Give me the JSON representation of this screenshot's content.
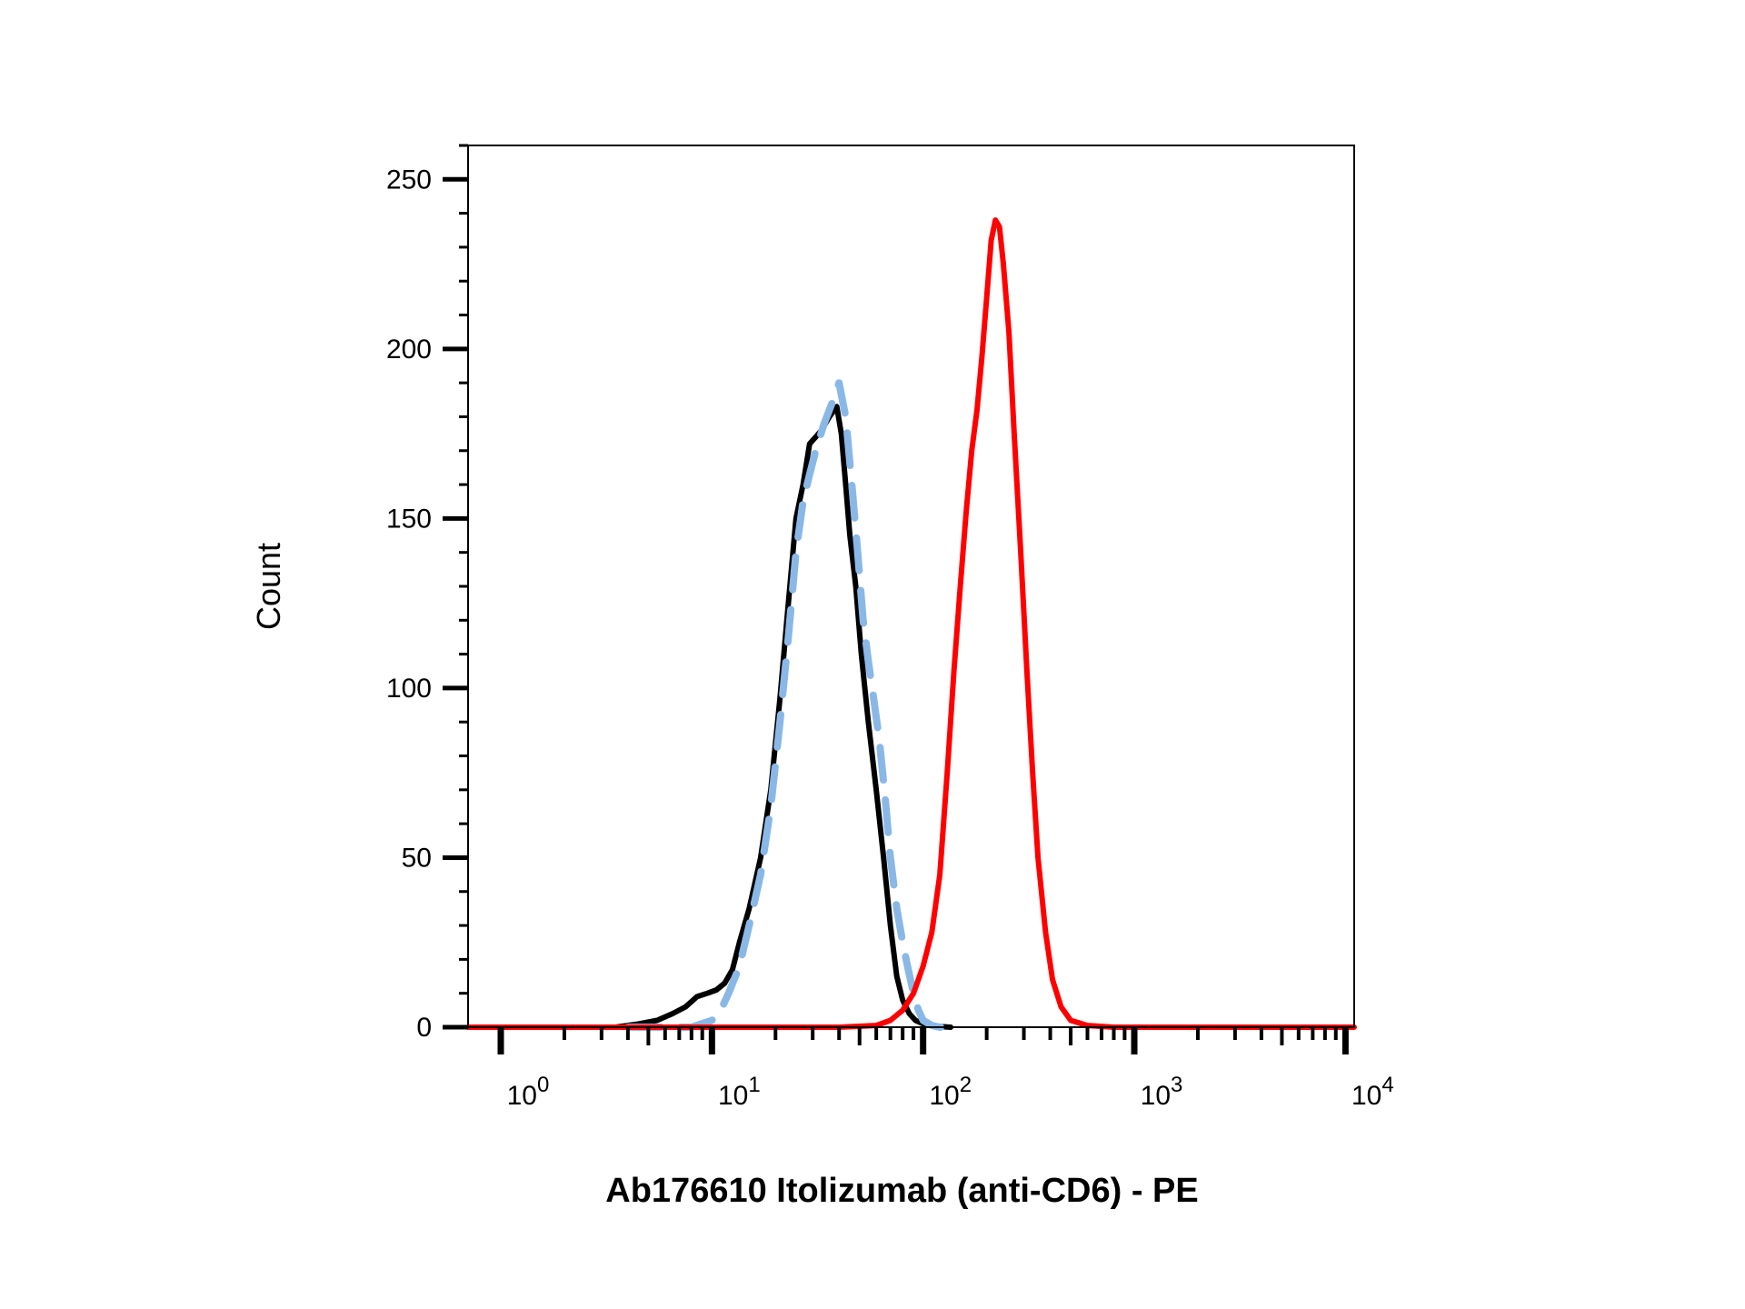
{
  "chart_data": {
    "type": "line",
    "title": "",
    "xlabel": "Ab176610 Itolizumab (anti-CD6) - PE",
    "ylabel": "Count",
    "x_scale": "log",
    "xlim": [
      0.7,
      11000
    ],
    "ylim": [
      0,
      260
    ],
    "x_ticks": [
      {
        "value": 1,
        "base": "10",
        "exp": "0"
      },
      {
        "value": 10,
        "base": "10",
        "exp": "1"
      },
      {
        "value": 100,
        "base": "10",
        "exp": "2"
      },
      {
        "value": 1000,
        "base": "10",
        "exp": "3"
      },
      {
        "value": 10000,
        "base": "10",
        "exp": "4"
      }
    ],
    "y_ticks": [
      {
        "value": 0,
        "label": "0"
      },
      {
        "value": 50,
        "label": "50"
      },
      {
        "value": 100,
        "label": "100"
      },
      {
        "value": 150,
        "label": "150"
      },
      {
        "value": 200,
        "label": "200"
      },
      {
        "value": 250,
        "label": "250"
      }
    ],
    "grid": false,
    "legend": "none",
    "series": [
      {
        "color": "#000000",
        "style": "solid",
        "x": [
          3.5,
          4.5,
          5.5,
          6.5,
          7.5,
          8.5,
          9.5,
          10.5,
          11.5,
          12.5,
          13.5,
          15,
          17,
          19,
          21,
          23,
          25,
          27,
          29,
          31,
          33,
          36,
          39,
          41,
          43,
          45,
          48,
          51,
          55,
          60,
          65,
          70,
          75,
          80,
          86,
          92,
          100,
          110,
          120,
          135
        ],
        "y": [
          0,
          1,
          2,
          4,
          6,
          9,
          10,
          11,
          13,
          17,
          25,
          35,
          50,
          70,
          97,
          125,
          150,
          160,
          172,
          174,
          176,
          180,
          183,
          175,
          160,
          145,
          130,
          110,
          90,
          70,
          50,
          30,
          15,
          8,
          4,
          2,
          1,
          0.5,
          0.2,
          0
        ]
      },
      {
        "color": "#8ab8e6",
        "style": "dashed",
        "x": [
          4,
          6,
          8,
          10,
          11,
          12,
          13.5,
          15,
          17,
          19,
          21,
          23,
          25,
          27,
          29,
          31,
          34,
          37,
          40,
          43,
          46,
          49,
          52,
          55,
          58,
          62,
          66,
          70,
          75,
          80,
          85,
          90,
          95,
          100,
          110,
          120,
          135
        ],
        "y": [
          0,
          0,
          0,
          2,
          5,
          10,
          18,
          30,
          45,
          65,
          90,
          115,
          140,
          155,
          163,
          170,
          178,
          184,
          190,
          180,
          160,
          140,
          120,
          108,
          98,
          85,
          68,
          50,
          35,
          25,
          17,
          10,
          5,
          2,
          0.5,
          0,
          0
        ]
      },
      {
        "color": "#ff0000",
        "style": "solid",
        "x": [
          0.7,
          40,
          60,
          70,
          80,
          90,
          100,
          110,
          120,
          130,
          140,
          150,
          160,
          170,
          180,
          190,
          200,
          210,
          220,
          230,
          240,
          255,
          270,
          290,
          310,
          330,
          350,
          380,
          410,
          450,
          500,
          600,
          800,
          11000
        ],
        "y": [
          0,
          0,
          0.5,
          2,
          5,
          10,
          18,
          28,
          45,
          75,
          105,
          130,
          152,
          170,
          182,
          198,
          215,
          232,
          238,
          236,
          225,
          205,
          175,
          140,
          105,
          75,
          50,
          28,
          14,
          6,
          2,
          0.5,
          0,
          0
        ]
      }
    ]
  }
}
